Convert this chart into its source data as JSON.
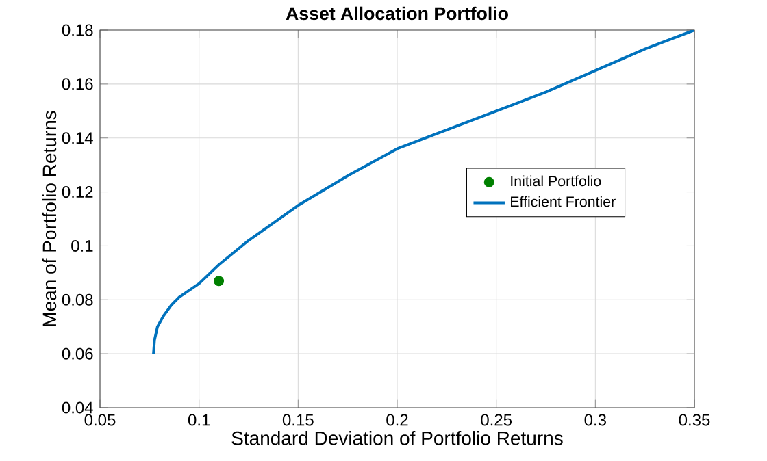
{
  "chart_data": {
    "type": "line",
    "title": "Asset Allocation Portfolio",
    "xlabel": "Standard Deviation of Portfolio Returns",
    "ylabel": "Mean of Portfolio Returns",
    "xlim": [
      0.05,
      0.35
    ],
    "ylim": [
      0.04,
      0.18
    ],
    "xticks": [
      0.05,
      0.1,
      0.15,
      0.2,
      0.25,
      0.3,
      0.35
    ],
    "yticks": [
      0.04,
      0.06,
      0.08,
      0.1,
      0.12,
      0.14,
      0.16,
      0.18
    ],
    "grid": true,
    "legend": "right",
    "series": [
      {
        "name": "Initial Portfolio",
        "type": "scatter",
        "marker": "circle",
        "color": "#008000",
        "x": [
          0.11
        ],
        "values": [
          0.087
        ]
      },
      {
        "name": "Efficient Frontier",
        "type": "line",
        "color": "#0072bd",
        "x": [
          0.077,
          0.0775,
          0.079,
          0.082,
          0.086,
          0.09,
          0.1,
          0.11,
          0.125,
          0.15,
          0.175,
          0.2,
          0.225,
          0.25,
          0.275,
          0.3,
          0.325,
          0.35
        ],
        "values": [
          0.06,
          0.065,
          0.07,
          0.074,
          0.078,
          0.081,
          0.086,
          0.093,
          0.102,
          0.115,
          0.126,
          0.136,
          0.143,
          0.15,
          0.157,
          0.165,
          0.173,
          0.18
        ]
      }
    ]
  }
}
